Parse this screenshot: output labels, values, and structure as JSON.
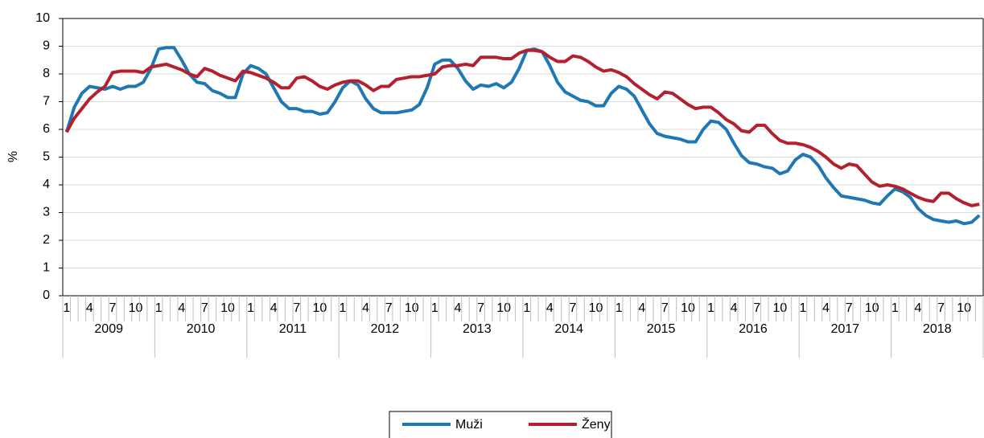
{
  "chart_data": {
    "type": "line",
    "y_label": "%",
    "categories": [
      "1",
      null,
      null,
      "4",
      null,
      null,
      "7",
      null,
      null,
      "10",
      null,
      null,
      "1",
      null,
      null,
      "4",
      null,
      null,
      "7",
      null,
      null,
      "10",
      null,
      null,
      "1",
      null,
      null,
      "4",
      null,
      null,
      "7",
      null,
      null,
      "10",
      null,
      null,
      "1",
      null,
      null,
      "4",
      null,
      null,
      "7",
      null,
      null,
      "10",
      null,
      null,
      "1",
      null,
      null,
      "4",
      null,
      null,
      "7",
      null,
      null,
      "10",
      null,
      null,
      "1",
      null,
      null,
      "4",
      null,
      null,
      "7",
      null,
      null,
      "10",
      null,
      null,
      "1",
      null,
      null,
      "4",
      null,
      null,
      "7",
      null,
      null,
      "10",
      null,
      null,
      "1",
      null,
      null,
      "4",
      null,
      null,
      "7",
      null,
      null,
      "10",
      null,
      null,
      "1",
      null,
      null,
      "4",
      null,
      null,
      "7",
      null,
      null,
      "10",
      null,
      null,
      "1",
      null,
      null,
      "4",
      null,
      null,
      "7",
      null,
      null,
      "10",
      null,
      null
    ],
    "years": [
      "2009",
      "2010",
      "2011",
      "2012",
      "2013",
      "2014",
      "2015",
      "2016",
      "2017",
      "2018"
    ],
    "series": [
      {
        "name": "Muži",
        "color": "#1f77b4",
        "values": [
          5.9,
          6.8,
          7.3,
          7.55,
          7.5,
          7.45,
          7.55,
          7.45,
          7.55,
          7.55,
          7.7,
          8.2,
          8.9,
          8.95,
          8.95,
          8.5,
          8.0,
          7.7,
          7.65,
          7.4,
          7.3,
          7.15,
          7.15,
          8.0,
          8.3,
          8.2,
          8.0,
          7.5,
          7.0,
          6.75,
          6.75,
          6.65,
          6.65,
          6.55,
          6.6,
          7.0,
          7.5,
          7.75,
          7.6,
          7.1,
          6.75,
          6.6,
          6.6,
          6.6,
          6.65,
          6.7,
          6.9,
          7.5,
          8.35,
          8.5,
          8.5,
          8.2,
          7.75,
          7.45,
          7.6,
          7.55,
          7.65,
          7.5,
          7.7,
          8.2,
          8.85,
          8.9,
          8.8,
          8.3,
          7.7,
          7.35,
          7.2,
          7.05,
          7.0,
          6.85,
          6.85,
          7.3,
          7.55,
          7.45,
          7.2,
          6.7,
          6.2,
          5.85,
          5.75,
          5.7,
          5.65,
          5.55,
          5.55,
          6.0,
          6.3,
          6.25,
          6.0,
          5.5,
          5.05,
          4.8,
          4.75,
          4.65,
          4.6,
          4.4,
          4.5,
          4.9,
          5.1,
          5.0,
          4.7,
          4.25,
          3.9,
          3.6,
          3.55,
          3.5,
          3.45,
          3.35,
          3.3,
          3.6,
          3.85,
          3.75,
          3.55,
          3.15,
          2.9,
          2.75,
          2.7,
          2.65,
          2.7,
          2.6,
          2.65,
          2.9
        ]
      },
      {
        "name": "Ženy",
        "color": "#b5202e",
        "values": [
          5.9,
          6.4,
          6.75,
          7.1,
          7.35,
          7.55,
          8.05,
          8.1,
          8.1,
          8.1,
          8.05,
          8.25,
          8.3,
          8.35,
          8.25,
          8.15,
          8.0,
          7.9,
          8.2,
          8.1,
          7.95,
          7.85,
          7.75,
          8.1,
          8.05,
          7.95,
          7.85,
          7.7,
          7.5,
          7.5,
          7.85,
          7.9,
          7.75,
          7.55,
          7.45,
          7.6,
          7.7,
          7.75,
          7.75,
          7.6,
          7.4,
          7.55,
          7.55,
          7.8,
          7.85,
          7.9,
          7.9,
          7.95,
          8.0,
          8.25,
          8.3,
          8.3,
          8.35,
          8.3,
          8.6,
          8.6,
          8.6,
          8.55,
          8.55,
          8.75,
          8.85,
          8.85,
          8.8,
          8.6,
          8.45,
          8.45,
          8.65,
          8.6,
          8.45,
          8.25,
          8.1,
          8.15,
          8.05,
          7.9,
          7.65,
          7.45,
          7.25,
          7.1,
          7.35,
          7.3,
          7.1,
          6.9,
          6.75,
          6.8,
          6.8,
          6.6,
          6.35,
          6.2,
          5.95,
          5.9,
          6.15,
          6.15,
          5.85,
          5.6,
          5.5,
          5.5,
          5.45,
          5.35,
          5.2,
          5.0,
          4.75,
          4.6,
          4.75,
          4.7,
          4.4,
          4.1,
          3.95,
          4.0,
          3.95,
          3.85,
          3.7,
          3.55,
          3.45,
          3.4,
          3.7,
          3.7,
          3.5,
          3.35,
          3.25,
          3.3
        ]
      }
    ],
    "ylim": [
      0,
      10
    ],
    "yticks": [
      0,
      1,
      2,
      3,
      4,
      5,
      6,
      7,
      8,
      9,
      10
    ],
    "grid": true,
    "legend": "bottom"
  }
}
